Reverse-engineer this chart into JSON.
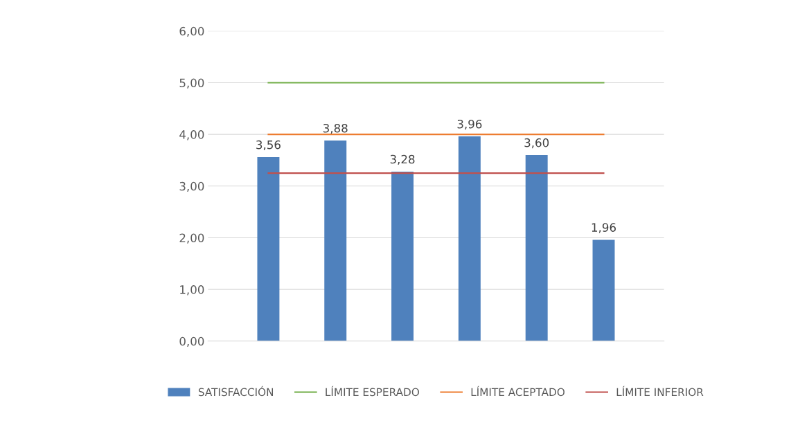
{
  "chart_data": {
    "type": "bar",
    "categories": [
      null,
      null,
      null,
      null,
      null,
      null
    ],
    "series": [
      {
        "name": "SATISFACCIÓN",
        "color": "#4f81bd",
        "values": [
          3.56,
          3.88,
          3.28,
          3.96,
          3.6,
          1.96
        ],
        "value_labels": [
          "3,56",
          "3,88",
          "3,28",
          "3,96",
          "3,60",
          "1,96"
        ]
      },
      {
        "name": "LÍMITE ESPERADO",
        "type": "line",
        "color": "#70ad47",
        "values": [
          5,
          5,
          5,
          5,
          5,
          5
        ]
      },
      {
        "name": "LÍMITE ACEPTADO",
        "type": "line",
        "color": "#ed7d31",
        "values": [
          4,
          4,
          4,
          4,
          4,
          4
        ]
      },
      {
        "name": "LÍMITE INFERIOR",
        "type": "line",
        "color": "#c0504d",
        "values": [
          3.25,
          3.25,
          3.25,
          3.25,
          3.25,
          3.25
        ]
      }
    ],
    "ylim": [
      0,
      6
    ],
    "yticks": [
      {
        "value": 0,
        "label": "0,00"
      },
      {
        "value": 1,
        "label": "1,00"
      },
      {
        "value": 2,
        "label": "2,00"
      },
      {
        "value": 3,
        "label": "3,00"
      },
      {
        "value": 4,
        "label": "4,00"
      },
      {
        "value": 5,
        "label": "5,00"
      },
      {
        "value": 6,
        "label": "6,00"
      }
    ],
    "grid": "y",
    "legend": "bottom"
  }
}
